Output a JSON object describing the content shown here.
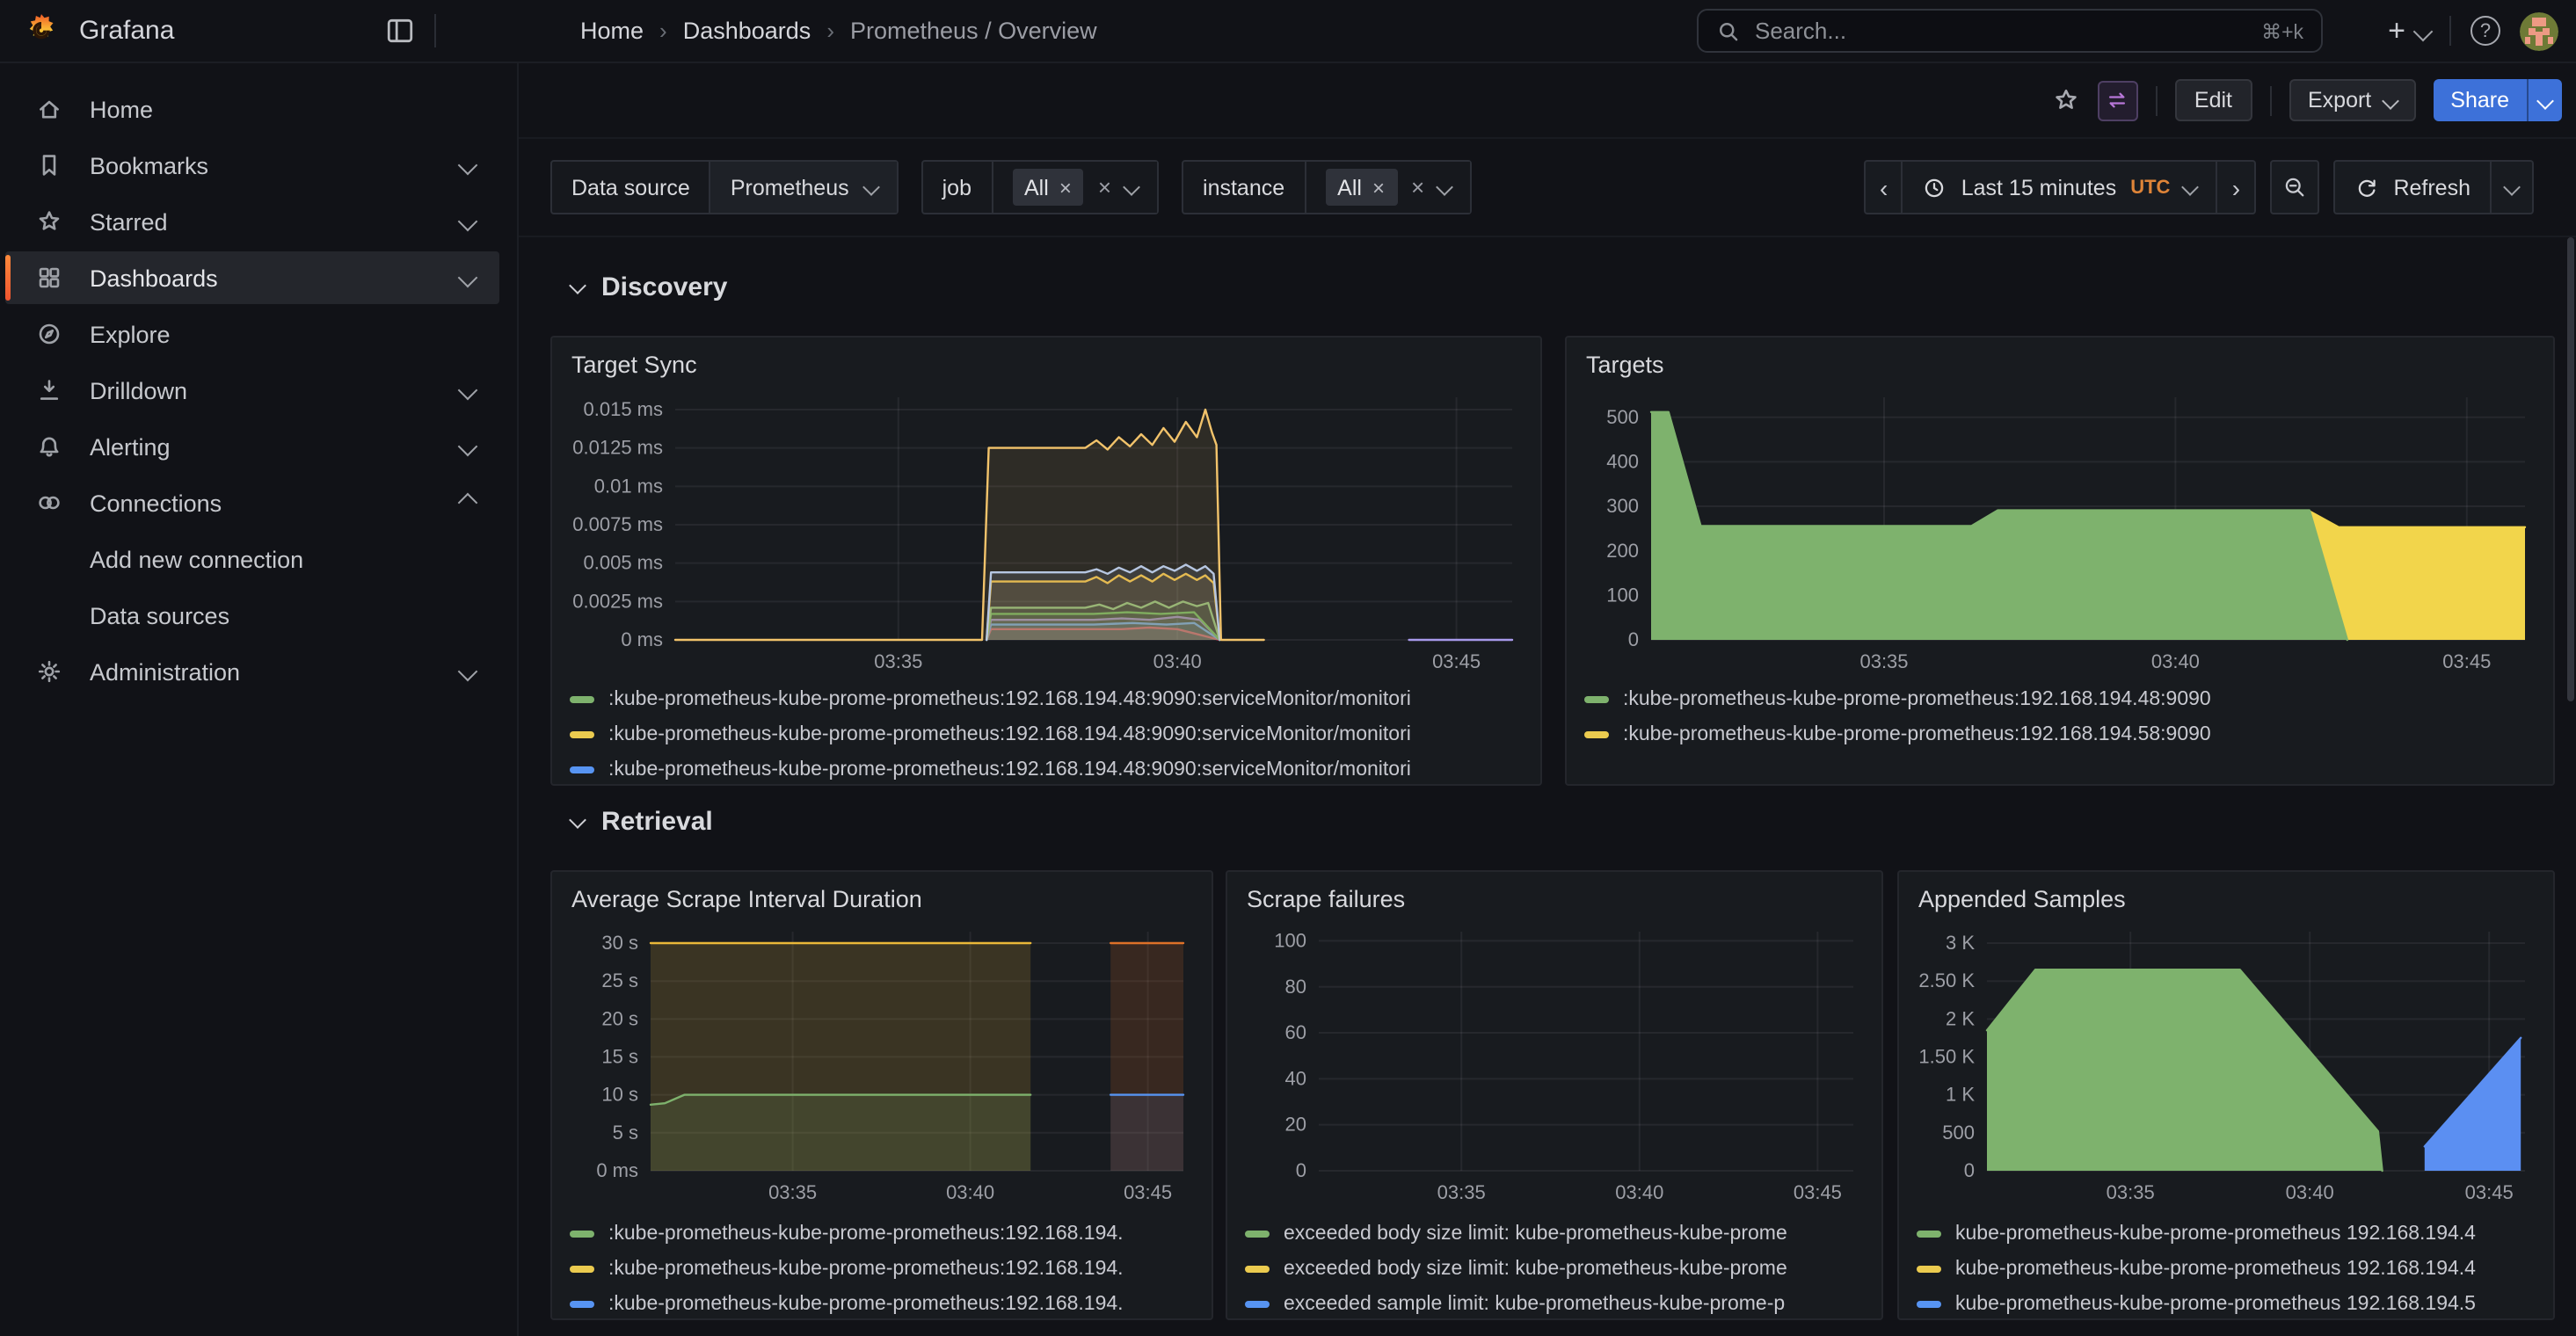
{
  "app": {
    "brand": "Grafana"
  },
  "icons": {
    "help": "?",
    "plus": "+",
    "close": "×",
    "breadcrumb_separator": "›",
    "prev": "‹",
    "next": "›"
  },
  "breadcrumb": {
    "items": [
      {
        "label": "Home"
      },
      {
        "label": "Dashboards"
      },
      {
        "label": "Prometheus / Overview"
      }
    ]
  },
  "topbar": {
    "search_placeholder": "Search...",
    "search_shortcut": "⌘+k"
  },
  "toolbar": {
    "edit_label": "Edit",
    "export_label": "Export",
    "share_label": "Share"
  },
  "sidebar": {
    "items": [
      {
        "label": "Home",
        "icon": "home"
      },
      {
        "label": "Bookmarks",
        "icon": "bookmark",
        "chevron": "down"
      },
      {
        "label": "Starred",
        "icon": "star",
        "chevron": "down"
      },
      {
        "label": "Dashboards",
        "icon": "dashboards",
        "chevron": "down",
        "active": true
      },
      {
        "label": "Explore",
        "icon": "compass"
      },
      {
        "label": "Drilldown",
        "icon": "drilldown",
        "chevron": "down"
      },
      {
        "label": "Alerting",
        "icon": "bell",
        "chevron": "down"
      },
      {
        "label": "Connections",
        "icon": "link",
        "chevron": "up"
      },
      {
        "label": "Add new connection",
        "indent": true
      },
      {
        "label": "Data sources",
        "indent": true
      },
      {
        "label": "Administration",
        "icon": "gear",
        "chevron": "down"
      }
    ]
  },
  "filters": {
    "datasource": {
      "label": "Data source",
      "value": "Prometheus"
    },
    "job": {
      "label": "job",
      "value": "All"
    },
    "instance": {
      "label": "instance",
      "value": "All"
    }
  },
  "timebar": {
    "range_label": "Last 15 minutes",
    "timezone": "UTC",
    "refresh_label": "Refresh"
  },
  "sections": [
    {
      "title": "Discovery"
    },
    {
      "title": "Retrieval"
    }
  ],
  "panels": {
    "target_sync": {
      "title": "Target Sync",
      "legend": [
        {
          "color": "#7EB26D",
          "label": ":kube-prometheus-kube-prome-prometheus:192.168.194.48:9090:serviceMonitor/monitori"
        },
        {
          "color": "#EBCB4F",
          "label": ":kube-prometheus-kube-prome-prometheus:192.168.194.48:9090:serviceMonitor/monitori"
        },
        {
          "color": "#5794F2",
          "label": ":kube-prometheus-kube-prome-prometheus:192.168.194.48:9090:serviceMonitor/monitori"
        }
      ]
    },
    "targets": {
      "title": "Targets",
      "legend": [
        {
          "color": "#7EB26D",
          "label": ":kube-prometheus-kube-prome-prometheus:192.168.194.48:9090"
        },
        {
          "color": "#EBCB4F",
          "label": ":kube-prometheus-kube-prome-prometheus:192.168.194.58:9090"
        }
      ]
    },
    "avg_scrape": {
      "title": "Average Scrape Interval Duration",
      "legend": [
        {
          "color": "#7EB26D",
          "label": ":kube-prometheus-kube-prome-prometheus:192.168.194."
        },
        {
          "color": "#EBCB4F",
          "label": ":kube-prometheus-kube-prome-prometheus:192.168.194."
        },
        {
          "color": "#5794F2",
          "label": ":kube-prometheus-kube-prome-prometheus:192.168.194."
        }
      ]
    },
    "scrape_failures": {
      "title": "Scrape failures",
      "legend": [
        {
          "color": "#7EB26D",
          "label": "exceeded body size limit: kube-prometheus-kube-prome"
        },
        {
          "color": "#EBCB4F",
          "label": "exceeded body size limit: kube-prometheus-kube-prome"
        },
        {
          "color": "#5794F2",
          "label": "exceeded sample limit: kube-prometheus-kube-prome-p"
        }
      ]
    },
    "appended_samples": {
      "title": "Appended Samples",
      "legend": [
        {
          "color": "#7EB26D",
          "label": "kube-prometheus-kube-prome-prometheus 192.168.194.4"
        },
        {
          "color": "#EBCB4F",
          "label": "kube-prometheus-kube-prome-prometheus 192.168.194.4"
        },
        {
          "color": "#5794F2",
          "label": "kube-prometheus-kube-prome-prometheus 192.168.194.5"
        }
      ]
    }
  },
  "chart_data": [
    {
      "id": "target_sync",
      "type": "area",
      "title": "Target Sync",
      "x_domain": [
        0,
        15
      ],
      "y_domain": [
        0,
        0.0158
      ],
      "margin_left": 62,
      "x_ticks": [
        {
          "x": 4,
          "label": "03:35"
        },
        {
          "x": 9,
          "label": "03:40"
        },
        {
          "x": 14,
          "label": "03:45"
        }
      ],
      "y_ticks": [
        {
          "v": 0,
          "label": "0 ms"
        },
        {
          "v": 0.0025,
          "label": "0.0025 ms"
        },
        {
          "v": 0.005,
          "label": "0.005 ms"
        },
        {
          "v": 0.0075,
          "label": "0.0075 ms"
        },
        {
          "v": 0.01,
          "label": "0.01 ms"
        },
        {
          "v": 0.0125,
          "label": "0.0125 ms"
        },
        {
          "v": 0.015,
          "label": "0.015 ms"
        }
      ],
      "series": [
        {
          "color": "#E02F44",
          "fill_opacity": 0.12,
          "points": [
            [
              5.58,
              0
            ],
            [
              5.66,
              0.0007
            ],
            [
              8,
              0.0007
            ],
            [
              8.5,
              0.0008
            ],
            [
              9,
              0.0007
            ],
            [
              9.76,
              0
            ]
          ]
        },
        {
          "color": "#5794F2",
          "fill_opacity": 0.12,
          "points": [
            [
              5.58,
              0
            ],
            [
              5.66,
              0.001
            ],
            [
              7.5,
              0.001
            ],
            [
              8.2,
              0.0011
            ],
            [
              8.8,
              0.001
            ],
            [
              9.3,
              0.0011
            ],
            [
              9.76,
              0
            ]
          ]
        },
        {
          "color": "#8F6BC8",
          "fill_opacity": 0.12,
          "points": [
            [
              5.58,
              0
            ],
            [
              5.66,
              0.0013
            ],
            [
              7.5,
              0.0013
            ],
            [
              8,
              0.0014
            ],
            [
              8.5,
              0.0013
            ],
            [
              9,
              0.0015
            ],
            [
              9.4,
              0.0013
            ],
            [
              9.76,
              0
            ]
          ]
        },
        {
          "color": "#56A64B",
          "fill_opacity": 0.12,
          "points": [
            [
              5.58,
              0
            ],
            [
              5.66,
              0.0017
            ],
            [
              7.5,
              0.0017
            ],
            [
              8.1,
              0.0018
            ],
            [
              8.7,
              0.0017
            ],
            [
              9.3,
              0.0018
            ],
            [
              9.76,
              0
            ]
          ]
        },
        {
          "color": "#7EB26D",
          "fill_opacity": 0.12,
          "points": [
            [
              5.58,
              0
            ],
            [
              5.66,
              0.0021
            ],
            [
              7.35,
              0.0021
            ],
            [
              7.6,
              0.0023
            ],
            [
              7.85,
              0.002
            ],
            [
              8.1,
              0.0024
            ],
            [
              8.35,
              0.0021
            ],
            [
              8.6,
              0.0025
            ],
            [
              8.85,
              0.0021
            ],
            [
              9.1,
              0.0025
            ],
            [
              9.35,
              0.0022
            ],
            [
              9.55,
              0.0024
            ],
            [
              9.76,
              0
            ]
          ]
        },
        {
          "color": "#EAB839",
          "fill_opacity": 0.12,
          "points": [
            [
              5.58,
              0
            ],
            [
              5.66,
              0.0038
            ],
            [
              7.35,
              0.0038
            ],
            [
              7.55,
              0.0041
            ],
            [
              7.75,
              0.0037
            ],
            [
              7.95,
              0.0042
            ],
            [
              8.15,
              0.0038
            ],
            [
              8.35,
              0.0042
            ],
            [
              8.55,
              0.0038
            ],
            [
              8.75,
              0.0043
            ],
            [
              8.95,
              0.0039
            ],
            [
              9.15,
              0.0043
            ],
            [
              9.35,
              0.0039
            ],
            [
              9.5,
              0.0042
            ],
            [
              9.65,
              0.0037
            ],
            [
              9.76,
              0
            ]
          ]
        },
        {
          "color": "#AFC7EF",
          "fill_opacity": 0.12,
          "points": [
            [
              5.58,
              0
            ],
            [
              5.66,
              0.0044
            ],
            [
              7.35,
              0.0044
            ],
            [
              7.55,
              0.0046
            ],
            [
              7.75,
              0.0043
            ],
            [
              7.95,
              0.0047
            ],
            [
              8.15,
              0.0044
            ],
            [
              8.35,
              0.0048
            ],
            [
              8.55,
              0.0044
            ],
            [
              8.75,
              0.0048
            ],
            [
              8.95,
              0.0045
            ],
            [
              9.15,
              0.0049
            ],
            [
              9.35,
              0.0045
            ],
            [
              9.5,
              0.0048
            ],
            [
              9.65,
              0.0043
            ],
            [
              9.76,
              0
            ]
          ]
        },
        {
          "color": "#F2C36B",
          "fill_opacity": 0.1,
          "points": [
            [
              0,
              0
            ],
            [
              5.5,
              0
            ],
            [
              5.62,
              0.0125
            ],
            [
              7.35,
              0.0125
            ],
            [
              7.55,
              0.013
            ],
            [
              7.75,
              0.0124
            ],
            [
              7.95,
              0.0132
            ],
            [
              8.15,
              0.0126
            ],
            [
              8.35,
              0.0134
            ],
            [
              8.55,
              0.0127
            ],
            [
              8.75,
              0.0138
            ],
            [
              8.95,
              0.0129
            ],
            [
              9.15,
              0.0142
            ],
            [
              9.35,
              0.0132
            ],
            [
              9.5,
              0.015
            ],
            [
              9.62,
              0.0135
            ],
            [
              9.7,
              0.0127
            ],
            [
              9.78,
              0
            ],
            [
              10.55,
              0
            ]
          ]
        },
        {
          "color": "#A79AEB",
          "fill_opacity": 0,
          "points": [
            [
              13.15,
              0
            ],
            [
              15,
              0
            ]
          ]
        }
      ]
    },
    {
      "id": "targets",
      "type": "area",
      "title": "Targets",
      "x_domain": [
        0,
        15
      ],
      "y_domain": [
        0,
        545
      ],
      "margin_left": 40,
      "x_ticks": [
        {
          "x": 4,
          "label": "03:35"
        },
        {
          "x": 9,
          "label": "03:40"
        },
        {
          "x": 14,
          "label": "03:45"
        }
      ],
      "y_ticks": [
        {
          "v": 0,
          "label": "0"
        },
        {
          "v": 100,
          "label": "100"
        },
        {
          "v": 200,
          "label": "200"
        },
        {
          "v": 300,
          "label": "300"
        },
        {
          "v": 400,
          "label": "400"
        },
        {
          "v": 500,
          "label": "500"
        }
      ],
      "series": [
        {
          "color": "#F2D54B",
          "fill_opacity": 1,
          "points": [
            [
              11.3,
              289
            ],
            [
              11.8,
              253
            ],
            [
              15,
              253
            ]
          ]
        },
        {
          "color": "#7EB26D",
          "fill_opacity": 1,
          "points": [
            [
              0,
              512
            ],
            [
              0.3,
              512
            ],
            [
              0.85,
              256
            ],
            [
              5.5,
              256
            ],
            [
              5.95,
              291
            ],
            [
              11.3,
              291
            ],
            [
              11.95,
              0
            ]
          ]
        }
      ]
    },
    {
      "id": "avg_scrape",
      "type": "area",
      "title": "Average Scrape Interval Duration",
      "x_domain": [
        0,
        15
      ],
      "y_domain": [
        0,
        31.5
      ],
      "margin_left": 48,
      "x_ticks": [
        {
          "x": 4,
          "label": "03:35"
        },
        {
          "x": 9,
          "label": "03:40"
        },
        {
          "x": 14,
          "label": "03:45"
        }
      ],
      "y_ticks": [
        {
          "v": 0,
          "label": "0 ms"
        },
        {
          "v": 5,
          "label": "5 s"
        },
        {
          "v": 10,
          "label": "10 s"
        },
        {
          "v": 15,
          "label": "15 s"
        },
        {
          "v": 20,
          "label": "20 s"
        },
        {
          "v": 25,
          "label": "25 s"
        },
        {
          "v": 30,
          "label": "30 s"
        }
      ],
      "series": [
        {
          "color": "#EAB839",
          "fill_opacity": 0.16,
          "points": [
            [
              0,
              30
            ],
            [
              10.7,
              30
            ]
          ]
        },
        {
          "color": "#7EB26D",
          "fill_opacity": 0.14,
          "points": [
            [
              0,
              8.7
            ],
            [
              0.4,
              8.9
            ],
            [
              0.95,
              10
            ],
            [
              10.7,
              10
            ]
          ]
        },
        {
          "color": "#DE7128",
          "fill_opacity": 0.16,
          "points": [
            [
              12.95,
              30
            ],
            [
              15,
              30
            ]
          ]
        },
        {
          "color": "#5794F2",
          "fill_opacity": 0.1,
          "points": [
            [
              12.95,
              10
            ],
            [
              15,
              10
            ]
          ]
        }
      ]
    },
    {
      "id": "scrape_failures",
      "type": "line",
      "title": "Scrape failures",
      "x_domain": [
        0,
        15
      ],
      "y_domain": [
        0,
        104
      ],
      "margin_left": 44,
      "x_ticks": [
        {
          "x": 4,
          "label": "03:35"
        },
        {
          "x": 9,
          "label": "03:40"
        },
        {
          "x": 14,
          "label": "03:45"
        }
      ],
      "y_ticks": [
        {
          "v": 0,
          "label": "0"
        },
        {
          "v": 20,
          "label": "20"
        },
        {
          "v": 40,
          "label": "40"
        },
        {
          "v": 60,
          "label": "60"
        },
        {
          "v": 80,
          "label": "80"
        },
        {
          "v": 100,
          "label": "100"
        }
      ],
      "series": []
    },
    {
      "id": "appended_samples",
      "type": "area",
      "title": "Appended Samples",
      "x_domain": [
        0,
        15
      ],
      "y_domain": [
        0,
        3150
      ],
      "margin_left": 42,
      "x_ticks": [
        {
          "x": 4,
          "label": "03:35"
        },
        {
          "x": 9,
          "label": "03:40"
        },
        {
          "x": 14,
          "label": "03:45"
        }
      ],
      "y_ticks": [
        {
          "v": 0,
          "label": "0"
        },
        {
          "v": 500,
          "label": "500"
        },
        {
          "v": 1000,
          "label": "1 K"
        },
        {
          "v": 1500,
          "label": "1.50 K"
        },
        {
          "v": 2000,
          "label": "2 K"
        },
        {
          "v": 2500,
          "label": "2.50 K"
        },
        {
          "v": 3000,
          "label": "3 K"
        }
      ],
      "series": [
        {
          "color": "#7EB26D",
          "fill_opacity": 1,
          "points": [
            [
              0,
              1850
            ],
            [
              1.35,
              2650
            ],
            [
              7.05,
              2650
            ],
            [
              10.9,
              520
            ],
            [
              11.02,
              0
            ]
          ]
        },
        {
          "color": "#5B8FF2",
          "fill_opacity": 1,
          "points": [
            [
              12.2,
              320
            ],
            [
              14.88,
              1750
            ]
          ]
        }
      ]
    }
  ]
}
